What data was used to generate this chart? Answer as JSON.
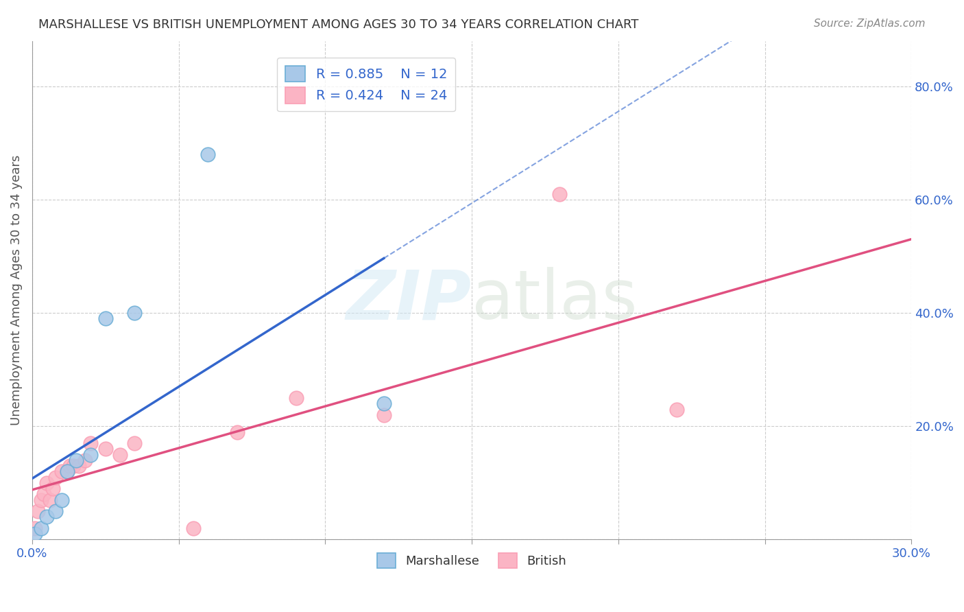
{
  "title": "MARSHALLESE VS BRITISH UNEMPLOYMENT AMONG AGES 30 TO 34 YEARS CORRELATION CHART",
  "source": "Source: ZipAtlas.com",
  "xlabel": "",
  "ylabel": "Unemployment Among Ages 30 to 34 years",
  "watermark": "ZIPatlas",
  "marshallese_color": "#6baed6",
  "marshallese_scatter_color": "#a8c8e8",
  "british_color": "#fa9fb5",
  "british_scatter_color": "#fbb4c4",
  "regression_blue": "#3366cc",
  "regression_pink": "#e05080",
  "R_marshallese": 0.885,
  "N_marshallese": 12,
  "R_british": 0.424,
  "N_british": 24,
  "xlim": [
    0.0,
    0.3
  ],
  "ylim": [
    0.0,
    0.88
  ],
  "xticks": [
    0.0,
    0.05,
    0.1,
    0.15,
    0.2,
    0.25,
    0.3
  ],
  "xtick_labels": [
    "0.0%",
    "",
    "",
    "",
    "",
    "",
    "30.0%"
  ],
  "yticks_right": [
    0.0,
    0.2,
    0.4,
    0.6,
    0.8
  ],
  "ytick_right_labels": [
    "",
    "20.0%",
    "40.0%",
    "60.0%",
    "80.0%"
  ],
  "marshallese_x": [
    0.001,
    0.003,
    0.005,
    0.008,
    0.01,
    0.012,
    0.015,
    0.02,
    0.025,
    0.035,
    0.06,
    0.12
  ],
  "marshallese_y": [
    0.01,
    0.02,
    0.04,
    0.05,
    0.07,
    0.12,
    0.14,
    0.15,
    0.39,
    0.4,
    0.68,
    0.24
  ],
  "british_x": [
    0.001,
    0.002,
    0.003,
    0.004,
    0.005,
    0.006,
    0.007,
    0.008,
    0.01,
    0.012,
    0.013,
    0.014,
    0.016,
    0.018,
    0.02,
    0.025,
    0.03,
    0.035,
    0.055,
    0.07,
    0.09,
    0.12,
    0.18,
    0.22
  ],
  "british_y": [
    0.02,
    0.05,
    0.07,
    0.08,
    0.1,
    0.07,
    0.09,
    0.11,
    0.12,
    0.12,
    0.13,
    0.13,
    0.13,
    0.14,
    0.17,
    0.16,
    0.15,
    0.17,
    0.02,
    0.19,
    0.25,
    0.22,
    0.61,
    0.23
  ],
  "background_color": "#ffffff",
  "grid_color": "#cccccc"
}
